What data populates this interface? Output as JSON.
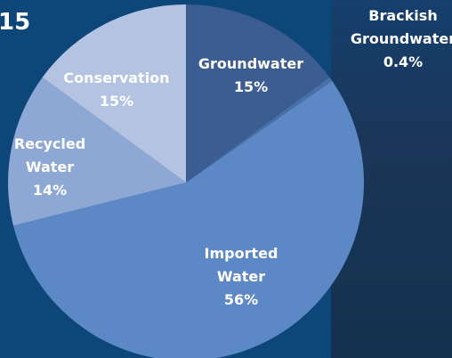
{
  "chart_data": {
    "type": "pie",
    "title": "15",
    "categories": [
      "Groundwater",
      "Brackish Groundwater",
      "Imported Water",
      "Recycled Water",
      "Conservation"
    ],
    "values": [
      15,
      0.4,
      56,
      14,
      15
    ],
    "value_labels": [
      "15%",
      "0.4%",
      "56%",
      "14%",
      "15%"
    ],
    "colors": [
      "#3b5d92",
      "#4a70a8",
      "#5c88c6",
      "#8ea8d5",
      "#b4c3e2"
    ]
  }
}
